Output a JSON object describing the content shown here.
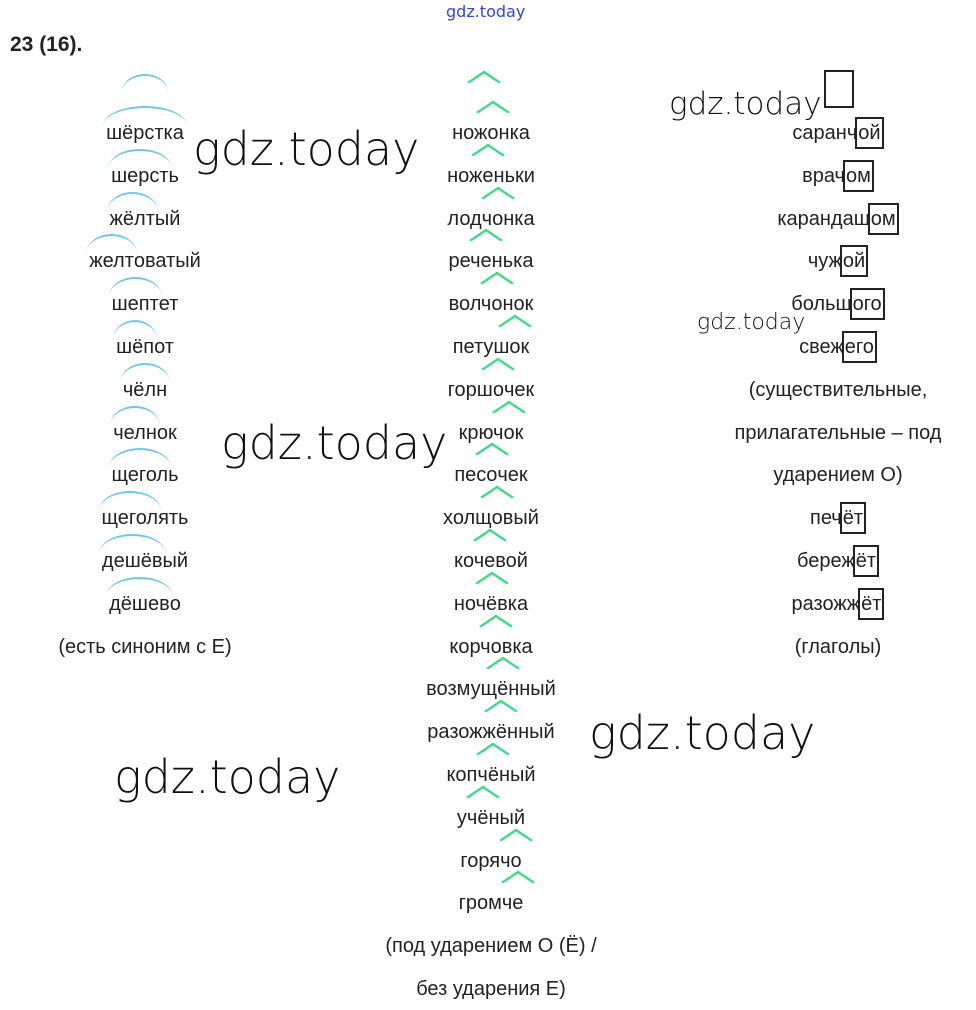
{
  "watermark_small": "gdz.today",
  "watermark": "gdz.today",
  "task_number": "23 (16).",
  "left": {
    "words": [
      [
        "",
        "шерст",
        "ка",
        "шёрстка"
      ],
      [
        "",
        "шерст",
        "ь"
      ],
      [
        "",
        "жёлт",
        "ый"
      ],
      [
        "",
        "желт",
        "оватый"
      ],
      [
        "",
        "шепт",
        "ет"
      ],
      [
        "",
        "шёп",
        "от"
      ],
      [
        "",
        "чёлн",
        ""
      ],
      [
        "",
        "челн",
        "ок"
      ],
      [
        "",
        "щегол",
        "ь"
      ],
      [
        "",
        "щегол",
        "ять"
      ],
      [
        "",
        "дешёв",
        "ый"
      ],
      [
        "",
        "дёшев",
        "о"
      ]
    ],
    "note": "(есть синоним с Е)"
  },
  "middle": {
    "words": [
      [
        "нож",
        "о",
        "нка"
      ],
      [
        "нож",
        "е",
        "ньки"
      ],
      [
        "лодч",
        "о",
        "нка"
      ],
      [
        "реч",
        "е",
        "нька"
      ],
      [
        "волч",
        "о",
        "нок"
      ],
      [
        "петуш",
        "о",
        "к"
      ],
      [
        "горш",
        "о",
        "чек"
      ],
      [
        "крюч",
        "о",
        "к"
      ],
      [
        "пес",
        "о",
        "чек"
      ],
      [
        "холщ",
        "о",
        "вый"
      ],
      [
        "коч",
        "е",
        "вой"
      ],
      [
        "ноч",
        "ё",
        "вка"
      ],
      [
        "корч",
        "о",
        "вка"
      ],
      [
        "возмущ",
        "ё",
        "нный"
      ],
      [
        "разожж",
        "ё",
        "нный"
      ],
      [
        "копч",
        "ё",
        "ный"
      ],
      [
        "уч",
        "ё",
        "ный"
      ],
      [
        "горяч",
        "о",
        ""
      ],
      [
        "громч",
        "е",
        ""
      ]
    ],
    "note1": "(под ударением О (Ё) /",
    "note2": "без ударения Е)"
  },
  "right": {
    "words": [
      [
        "саранч",
        "ой"
      ],
      [
        "врач",
        "ом"
      ],
      [
        "карандаш",
        "ом"
      ],
      [
        "чуж",
        "ой"
      ],
      [
        "больш",
        "ого"
      ],
      [
        "свеж",
        "его"
      ]
    ],
    "note1": "(существительные,",
    "note2": "прилагательные – под",
    "note3": "ударением О)",
    "verbs": [
      [
        "печ",
        "ёт"
      ],
      [
        "береж",
        "ёт"
      ],
      [
        "разожж",
        "ёт"
      ]
    ],
    "note4": "(глаголы)"
  },
  "colors": {
    "arc": "#6ec6ea",
    "caret": "#3ddc84",
    "watermark_small": "#3344dd"
  }
}
